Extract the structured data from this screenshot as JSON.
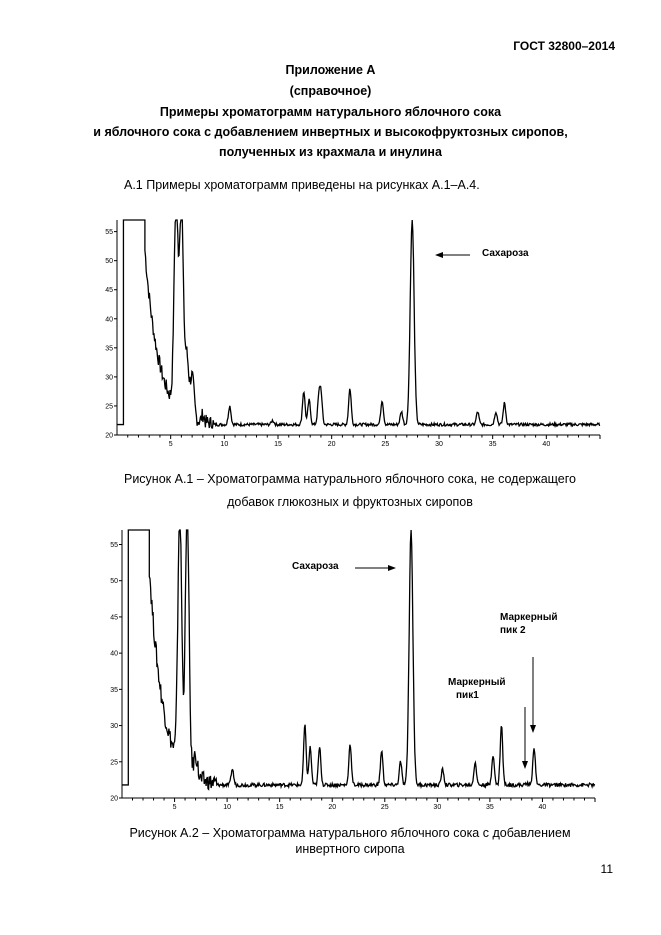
{
  "document": {
    "code": "ГОСТ 32800–2014",
    "page_number": "11"
  },
  "appendix": {
    "title": "Приложение А",
    "type": "(справочное)",
    "heading_lines": [
      "Примеры хроматограмм натурального яблочного сока",
      "и яблочного сока с добавлением инвертных и высокофруктозных сиропов,",
      "полученных из крахмала и инулина"
    ]
  },
  "intro_text": "А.1 Примеры хроматограмм приведены на рисунках А.1–А.4.",
  "figures": [
    {
      "caption_lines": [
        "Рисунок А.1 – Хроматограмма  натурального яблочного сока, не содержащего",
        "добавок глюкозных и фруктозных сиропов"
      ],
      "annotations": [
        {
          "label": "Сахароза"
        }
      ],
      "x_ticks": [
        "5",
        "10",
        "15",
        "20",
        "25",
        "30",
        "35",
        "40"
      ],
      "y_ticks": [
        "20",
        "25",
        "30",
        "35",
        "40",
        "45",
        "50",
        "55"
      ]
    },
    {
      "caption_lines": [
        "Рисунок А.2 – Хроматограмма натурального яблочного сока с добавлением",
        "инвертного сиропа"
      ],
      "annotations": [
        {
          "label": "Сахароза"
        },
        {
          "label_lines": [
            "Маркерный",
            "пик 2"
          ]
        },
        {
          "label_lines": [
            "Маркерный",
            "пик1"
          ]
        }
      ],
      "x_ticks": [
        "5",
        "10",
        "15",
        "20",
        "25",
        "30",
        "35",
        "40"
      ],
      "y_ticks": [
        "20",
        "25",
        "30",
        "35",
        "40",
        "45",
        "50",
        "55"
      ]
    }
  ],
  "chart_data": [
    {
      "type": "line",
      "x_range": [
        0,
        45
      ],
      "y_range": [
        20,
        57
      ],
      "series": [
        {
          "peaks": [
            [
              5.5,
              57
            ],
            [
              6.0,
              57
            ],
            [
              6.5,
              32
            ],
            [
              7.0,
              29
            ],
            [
              8.0,
              23
            ],
            [
              10.5,
              25
            ],
            [
              14.5,
              22.5
            ],
            [
              17.4,
              27.5
            ],
            [
              17.9,
              26
            ],
            [
              18.8,
              26
            ],
            [
              19.0,
              27
            ],
            [
              21.7,
              28
            ],
            [
              24.7,
              26
            ],
            [
              26.5,
              24
            ],
            [
              27.5,
              57
            ],
            [
              33.6,
              24
            ],
            [
              35.3,
              24
            ],
            [
              36.1,
              25.5
            ]
          ]
        }
      ]
    },
    {
      "type": "line",
      "x_range": [
        0,
        45
      ],
      "y_range": [
        20,
        57
      ],
      "series": [
        {
          "peaks": [
            [
              5.5,
              57
            ],
            [
              6.2,
              57
            ],
            [
              7.0,
              25
            ],
            [
              10.5,
              24
            ],
            [
              17.4,
              30
            ],
            [
              17.9,
              27
            ],
            [
              18.8,
              27
            ],
            [
              21.7,
              27.5
            ],
            [
              24.7,
              26.5
            ],
            [
              26.5,
              25
            ],
            [
              27.5,
              57
            ],
            [
              30.5,
              24
            ],
            [
              33.6,
              25
            ],
            [
              35.3,
              26
            ],
            [
              36.1,
              30
            ],
            [
              38.5,
              22
            ],
            [
              39.2,
              27
            ]
          ]
        }
      ]
    }
  ]
}
